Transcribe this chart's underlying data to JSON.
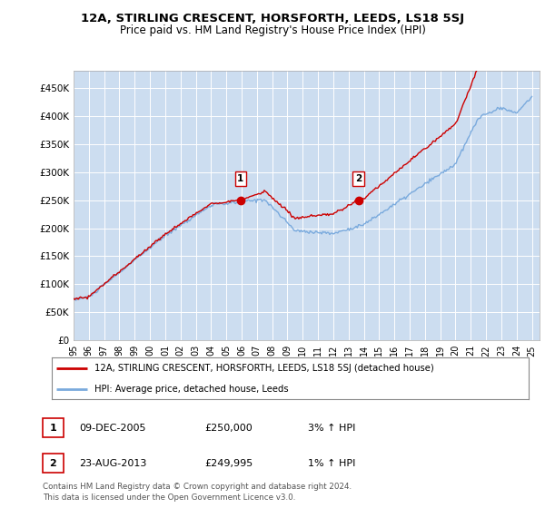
{
  "title": "12A, STIRLING CRESCENT, HORSFORTH, LEEDS, LS18 5SJ",
  "subtitle": "Price paid vs. HM Land Registry's House Price Index (HPI)",
  "ylabel_ticks": [
    "£0",
    "£50K",
    "£100K",
    "£150K",
    "£200K",
    "£250K",
    "£300K",
    "£350K",
    "£400K",
    "£450K"
  ],
  "ytick_vals": [
    0,
    50000,
    100000,
    150000,
    200000,
    250000,
    300000,
    350000,
    400000,
    450000
  ],
  "ylim": [
    0,
    480000
  ],
  "sale1_x": 2005.93,
  "sale1_y": 250000,
  "sale2_x": 2013.64,
  "sale2_y": 249995,
  "legend_line1": "12A, STIRLING CRESCENT, HORSFORTH, LEEDS, LS18 5SJ (detached house)",
  "legend_line2": "HPI: Average price, detached house, Leeds",
  "annotation1_date": "09-DEC-2005",
  "annotation1_price": "£250,000",
  "annotation1_hpi": "3% ↑ HPI",
  "annotation2_date": "23-AUG-2013",
  "annotation2_price": "£249,995",
  "annotation2_hpi": "1% ↑ HPI",
  "footer": "Contains HM Land Registry data © Crown copyright and database right 2024.\nThis data is licensed under the Open Government Licence v3.0.",
  "line_color_red": "#cc0000",
  "line_color_blue": "#7aaadd",
  "background_color": "#ccddf0",
  "xtick_years": [
    1995,
    1996,
    1997,
    1998,
    1999,
    2000,
    2001,
    2002,
    2003,
    2004,
    2005,
    2006,
    2007,
    2008,
    2009,
    2010,
    2011,
    2012,
    2013,
    2014,
    2015,
    2016,
    2017,
    2018,
    2019,
    2020,
    2021,
    2022,
    2023,
    2024,
    2025
  ],
  "xtick_labels": [
    "95",
    "96",
    "97",
    "98",
    "99",
    "00",
    "01",
    "02",
    "03",
    "04",
    "05",
    "06",
    "07",
    "08",
    "09",
    "10",
    "11",
    "12",
    "13",
    "14",
    "15",
    "16",
    "17",
    "18",
    "19",
    "20",
    "21",
    "22",
    "23",
    "24",
    "25"
  ]
}
